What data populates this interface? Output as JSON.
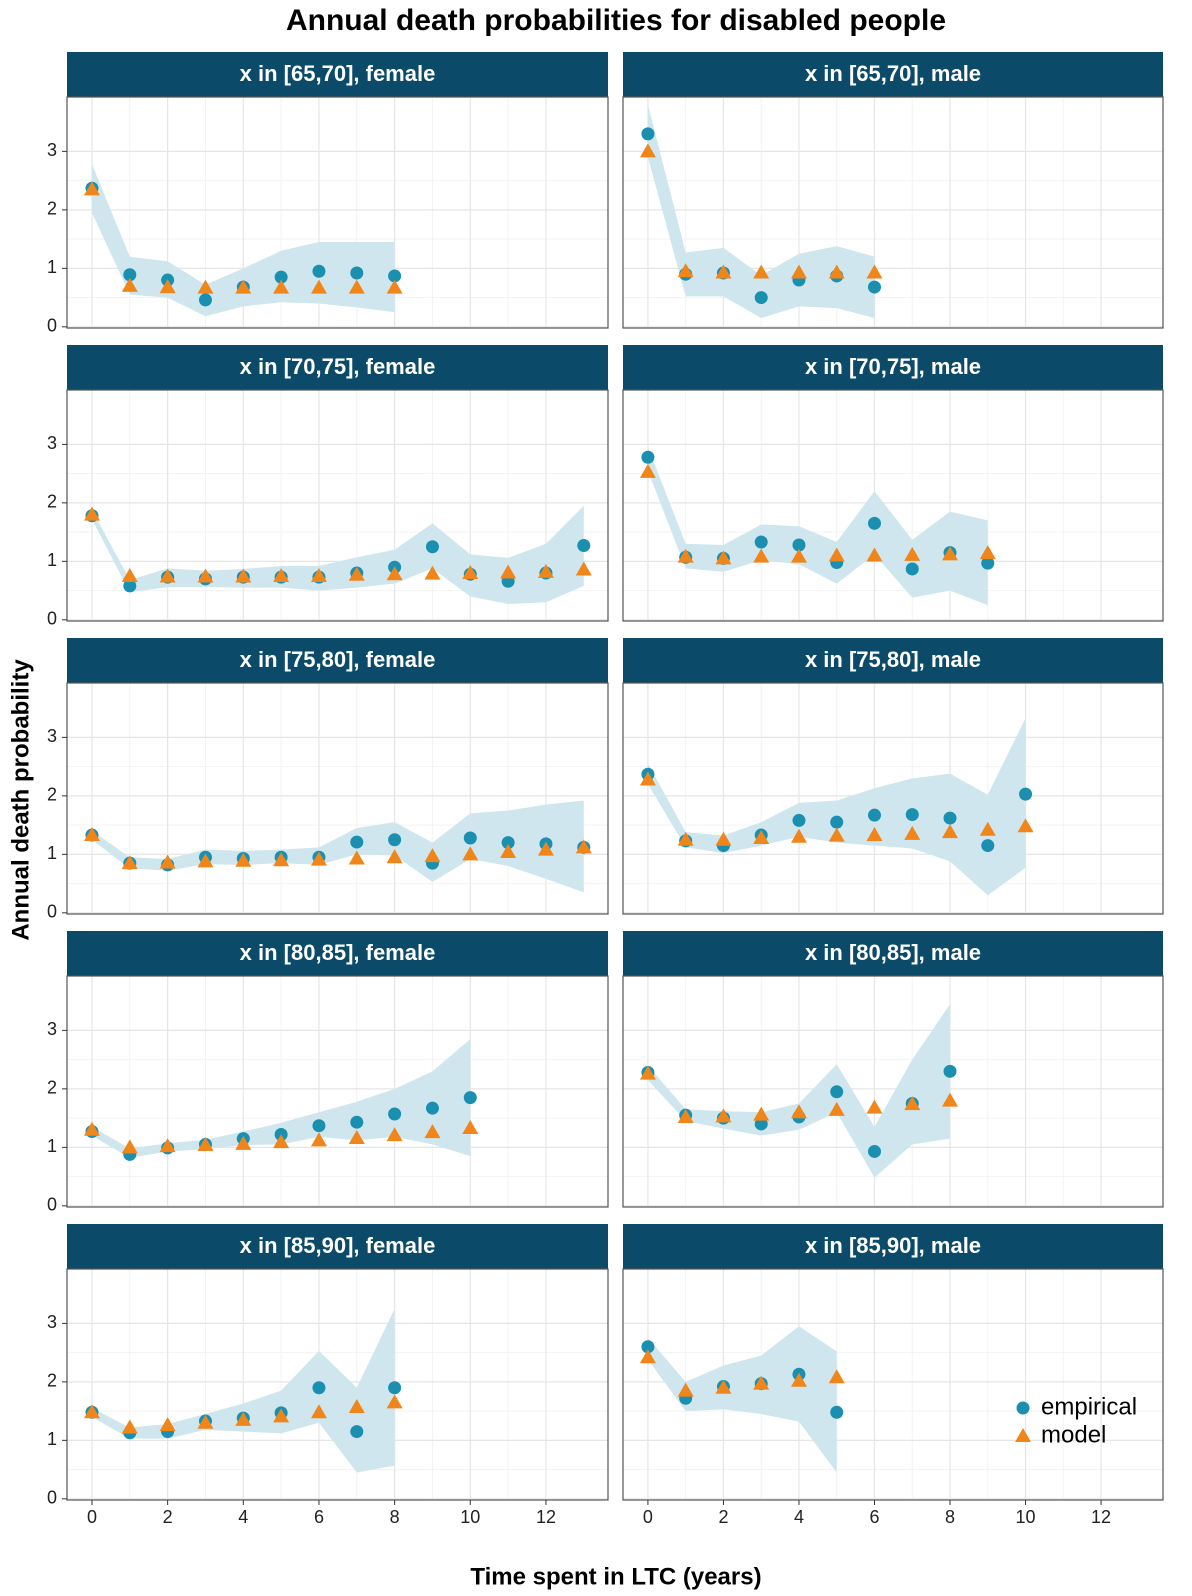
{
  "chart_data": {
    "type": "scatter",
    "title": "Annual death probabilities for disabled people",
    "x_label": "Time spent in LTC (years)",
    "y_label": "Annual death probability",
    "xlim": [
      -0.66,
      13.64
    ],
    "xticks": [
      0,
      2,
      4,
      6,
      8,
      10,
      12
    ],
    "ylim": [
      -0.02,
      3.93
    ],
    "yticks": [
      0,
      1,
      2,
      3
    ],
    "grid": true,
    "legend": "bottom-right",
    "band_color": "#cfe6ee",
    "strip_color": "#0b4a69",
    "series": [
      {
        "name": "empirical",
        "color": "#1a8fb0",
        "shape": "circle"
      },
      {
        "name": "model",
        "color": "#f0861a",
        "shape": "triangle"
      }
    ],
    "panels": [
      {
        "title": "x in [65,70], female",
        "x": [
          0,
          1,
          2,
          3,
          4,
          5,
          6,
          7,
          8
        ],
        "values": [
          [
            2.37,
            0.89,
            0.8,
            0.46,
            0.68,
            0.85,
            0.95,
            0.92,
            0.87
          ],
          [
            2.35,
            0.7,
            0.68,
            0.67,
            0.67,
            0.67,
            0.67,
            0.67,
            0.67
          ]
        ],
        "ci_low": [
          1.95,
          0.55,
          0.5,
          0.18,
          0.35,
          0.42,
          0.4,
          0.33,
          0.25
        ],
        "ci_high": [
          2.78,
          1.2,
          1.12,
          0.72,
          1.0,
          1.3,
          1.45,
          1.45,
          1.45
        ]
      },
      {
        "title": "x in [65,70], male",
        "x": [
          0,
          1,
          2,
          3,
          4,
          5,
          6
        ],
        "values": [
          [
            3.3,
            0.9,
            0.92,
            0.5,
            0.8,
            0.87,
            0.68
          ],
          [
            3.0,
            0.95,
            0.93,
            0.93,
            0.93,
            0.93,
            0.93
          ]
        ],
        "ci_low": [
          2.9,
          0.52,
          0.52,
          0.15,
          0.35,
          0.32,
          0.15
        ],
        "ci_high": [
          3.8,
          1.27,
          1.35,
          0.88,
          1.25,
          1.38,
          1.2
        ]
      },
      {
        "title": "x in [70,75], female",
        "x": [
          0,
          1,
          2,
          3,
          4,
          5,
          6,
          7,
          8,
          9,
          10,
          11,
          12,
          13
        ],
        "values": [
          [
            1.78,
            0.58,
            0.73,
            0.7,
            0.73,
            0.73,
            0.73,
            0.8,
            0.9,
            1.25,
            0.78,
            0.66,
            0.8,
            1.27
          ],
          [
            1.8,
            0.75,
            0.74,
            0.74,
            0.74,
            0.75,
            0.75,
            0.77,
            0.78,
            0.79,
            0.8,
            0.81,
            0.82,
            0.86
          ]
        ],
        "ci_low": [
          1.72,
          0.47,
          0.56,
          0.56,
          0.55,
          0.55,
          0.5,
          0.55,
          0.62,
          0.88,
          0.4,
          0.27,
          0.3,
          0.58
        ],
        "ci_high": [
          1.88,
          0.68,
          0.88,
          0.84,
          0.87,
          0.92,
          0.92,
          1.07,
          1.2,
          1.65,
          1.12,
          1.06,
          1.3,
          1.95
        ]
      },
      {
        "title": "x in [70,75], male",
        "x": [
          0,
          1,
          2,
          3,
          4,
          5,
          6,
          7,
          8,
          9
        ],
        "values": [
          [
            2.78,
            1.07,
            1.05,
            1.33,
            1.28,
            0.98,
            1.65,
            0.87,
            1.15,
            0.97
          ],
          [
            2.53,
            1.08,
            1.05,
            1.08,
            1.08,
            1.1,
            1.1,
            1.11,
            1.12,
            1.14
          ]
        ],
        "ci_low": [
          2.55,
          0.88,
          0.82,
          1.02,
          0.95,
          0.62,
          1.12,
          0.38,
          0.5,
          0.25
        ],
        "ci_high": [
          2.95,
          1.3,
          1.28,
          1.63,
          1.6,
          1.33,
          2.2,
          1.37,
          1.85,
          1.7
        ]
      },
      {
        "title": "x in [75,80], female",
        "x": [
          0,
          1,
          2,
          3,
          4,
          5,
          6,
          7,
          8,
          9,
          10,
          11,
          12,
          13
        ],
        "values": [
          [
            1.33,
            0.85,
            0.82,
            0.95,
            0.93,
            0.95,
            0.95,
            1.21,
            1.25,
            0.85,
            1.28,
            1.2,
            1.18,
            1.12
          ],
          [
            1.33,
            0.85,
            0.86,
            0.88,
            0.89,
            0.9,
            0.91,
            0.93,
            0.95,
            0.97,
            1.0,
            1.04,
            1.08,
            1.12
          ]
        ],
        "ci_low": [
          1.25,
          0.76,
          0.72,
          0.83,
          0.82,
          0.85,
          0.82,
          1.0,
          0.98,
          0.53,
          0.92,
          0.8,
          0.58,
          0.35
        ],
        "ci_high": [
          1.4,
          0.95,
          0.92,
          1.08,
          1.06,
          1.08,
          1.12,
          1.45,
          1.55,
          1.2,
          1.7,
          1.75,
          1.85,
          1.92
        ]
      },
      {
        "title": "x in [75,80], male",
        "x": [
          0,
          1,
          2,
          3,
          4,
          5,
          6,
          7,
          8,
          9,
          10
        ],
        "values": [
          [
            2.37,
            1.23,
            1.15,
            1.33,
            1.58,
            1.55,
            1.67,
            1.68,
            1.62,
            1.15,
            2.03
          ],
          [
            2.28,
            1.25,
            1.25,
            1.28,
            1.3,
            1.32,
            1.33,
            1.35,
            1.38,
            1.42,
            1.48
          ]
        ],
        "ci_low": [
          2.2,
          1.12,
          1.02,
          1.15,
          1.3,
          1.2,
          1.15,
          1.1,
          0.88,
          0.3,
          0.77
        ],
        "ci_high": [
          2.55,
          1.38,
          1.32,
          1.55,
          1.88,
          1.92,
          2.13,
          2.3,
          2.38,
          2.02,
          3.33
        ]
      },
      {
        "title": "x in [80,85], female",
        "x": [
          0,
          1,
          2,
          3,
          4,
          5,
          6,
          7,
          8,
          9,
          10
        ],
        "values": [
          [
            1.27,
            0.88,
            0.99,
            1.05,
            1.15,
            1.22,
            1.37,
            1.43,
            1.57,
            1.67,
            1.85
          ],
          [
            1.3,
            1.0,
            1.02,
            1.04,
            1.06,
            1.09,
            1.12,
            1.16,
            1.21,
            1.26,
            1.33
          ]
        ],
        "ci_low": [
          1.2,
          0.82,
          0.93,
          0.97,
          1.04,
          1.05,
          1.18,
          1.12,
          1.18,
          1.05,
          0.85
        ],
        "ci_high": [
          1.35,
          0.98,
          1.07,
          1.13,
          1.27,
          1.42,
          1.6,
          1.78,
          2.0,
          2.3,
          2.85
        ]
      },
      {
        "title": "x in [80,85], male",
        "x": [
          0,
          1,
          2,
          3,
          4,
          5,
          6,
          7,
          8
        ],
        "values": [
          [
            2.28,
            1.55,
            1.5,
            1.4,
            1.52,
            1.95,
            0.93,
            1.75,
            2.3
          ],
          [
            2.26,
            1.52,
            1.53,
            1.56,
            1.6,
            1.64,
            1.68,
            1.74,
            1.8
          ]
        ],
        "ci_low": [
          2.15,
          1.45,
          1.32,
          1.2,
          1.3,
          1.6,
          0.48,
          1.05,
          1.15
        ],
        "ci_high": [
          2.4,
          1.65,
          1.62,
          1.6,
          1.75,
          2.42,
          1.35,
          2.5,
          3.45
        ]
      },
      {
        "title": "x in [85,90], female",
        "x": [
          0,
          1,
          2,
          3,
          4,
          5,
          6,
          7,
          8
        ],
        "values": [
          [
            1.48,
            1.13,
            1.15,
            1.33,
            1.38,
            1.47,
            1.9,
            1.15,
            1.9
          ],
          [
            1.48,
            1.22,
            1.26,
            1.3,
            1.35,
            1.41,
            1.48,
            1.57,
            1.65
          ]
        ],
        "ci_low": [
          1.4,
          1.03,
          1.03,
          1.18,
          1.15,
          1.12,
          1.3,
          0.45,
          0.57
        ],
        "ci_high": [
          1.55,
          1.22,
          1.28,
          1.45,
          1.63,
          1.85,
          2.53,
          1.9,
          3.25
        ]
      },
      {
        "title": "x in [85,90], male",
        "x": [
          0,
          1,
          2,
          3,
          4,
          5
        ],
        "values": [
          [
            2.6,
            1.72,
            1.92,
            1.97,
            2.13,
            1.48
          ],
          [
            2.42,
            1.85,
            1.9,
            1.97,
            2.02,
            2.08
          ]
        ],
        "ci_low": [
          2.38,
          1.5,
          1.53,
          1.45,
          1.32,
          0.45
        ],
        "ci_high": [
          2.75,
          2.0,
          2.28,
          2.45,
          2.95,
          2.52
        ]
      }
    ]
  }
}
